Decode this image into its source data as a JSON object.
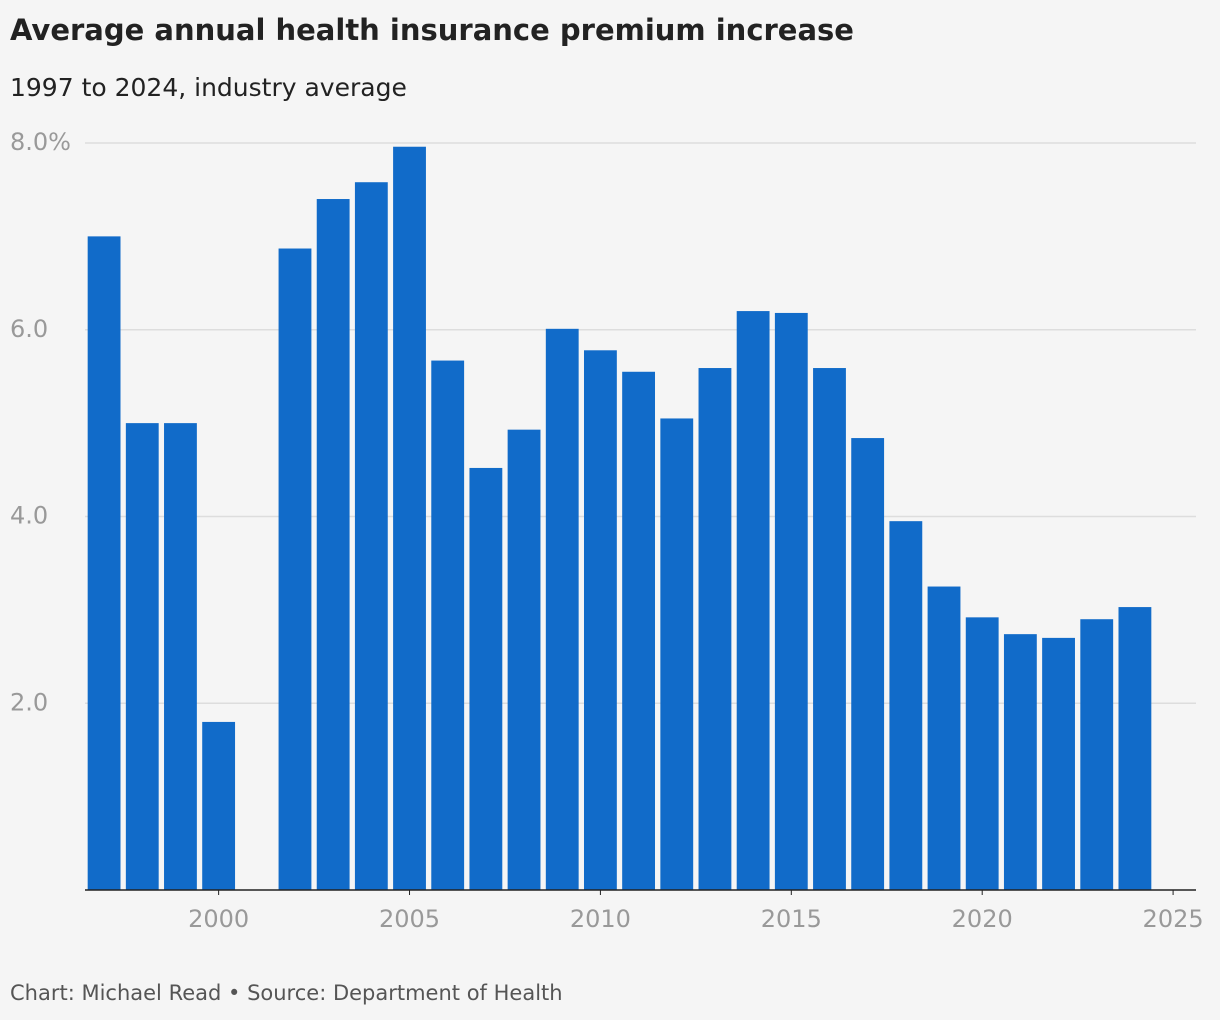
{
  "chart_data": {
    "type": "bar",
    "title": "Average annual health insurance premium increase",
    "subtitle": "1997 to 2024, industry average",
    "footer": "Chart: Michael Read • Source: Department of Health",
    "x": [
      1997,
      1998,
      1999,
      2000,
      2002,
      2003,
      2004,
      2005,
      2006,
      2007,
      2008,
      2009,
      2010,
      2011,
      2012,
      2013,
      2014,
      2015,
      2016,
      2017,
      2018,
      2019,
      2020,
      2021,
      2022,
      2023,
      2024
    ],
    "values": [
      7.0,
      5.0,
      5.0,
      1.8,
      6.87,
      7.4,
      7.58,
      7.96,
      5.67,
      4.52,
      4.93,
      6.01,
      5.78,
      5.55,
      5.05,
      5.59,
      6.2,
      6.18,
      5.59,
      4.84,
      3.95,
      3.25,
      2.92,
      2.74,
      2.7,
      2.9,
      3.03
    ],
    "color": "#116bc9",
    "xlim": [
      1996.5,
      2025.6
    ],
    "xticks": [
      2000,
      2005,
      2010,
      2015,
      2020,
      2025
    ],
    "ylim": [
      0,
      8
    ],
    "yticks": [
      {
        "value": 2,
        "label": "2.0"
      },
      {
        "value": 4,
        "label": "4.0"
      },
      {
        "value": 6,
        "label": "6.0"
      },
      {
        "value": 8,
        "label": "8.0%"
      }
    ],
    "grid": true
  }
}
